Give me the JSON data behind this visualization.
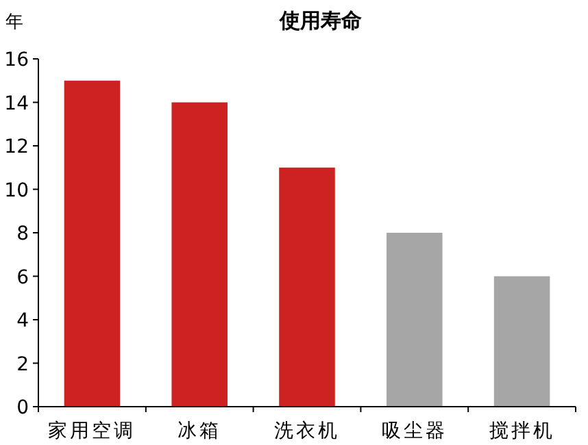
{
  "chart_data": {
    "type": "bar",
    "title": "使用寿命",
    "ylabel": "年",
    "categories": [
      "家用空调",
      "冰箱",
      "洗衣机",
      "吸尘器",
      "搅拌机"
    ],
    "values": [
      15,
      14,
      11,
      8,
      6
    ],
    "colors": [
      "#cc2222",
      "#cc2222",
      "#cc2222",
      "#a6a6a6",
      "#a6a6a6"
    ],
    "ylim": [
      0,
      16
    ],
    "yticks": [
      0,
      2,
      4,
      6,
      8,
      10,
      12,
      14,
      16
    ],
    "grid": false
  }
}
